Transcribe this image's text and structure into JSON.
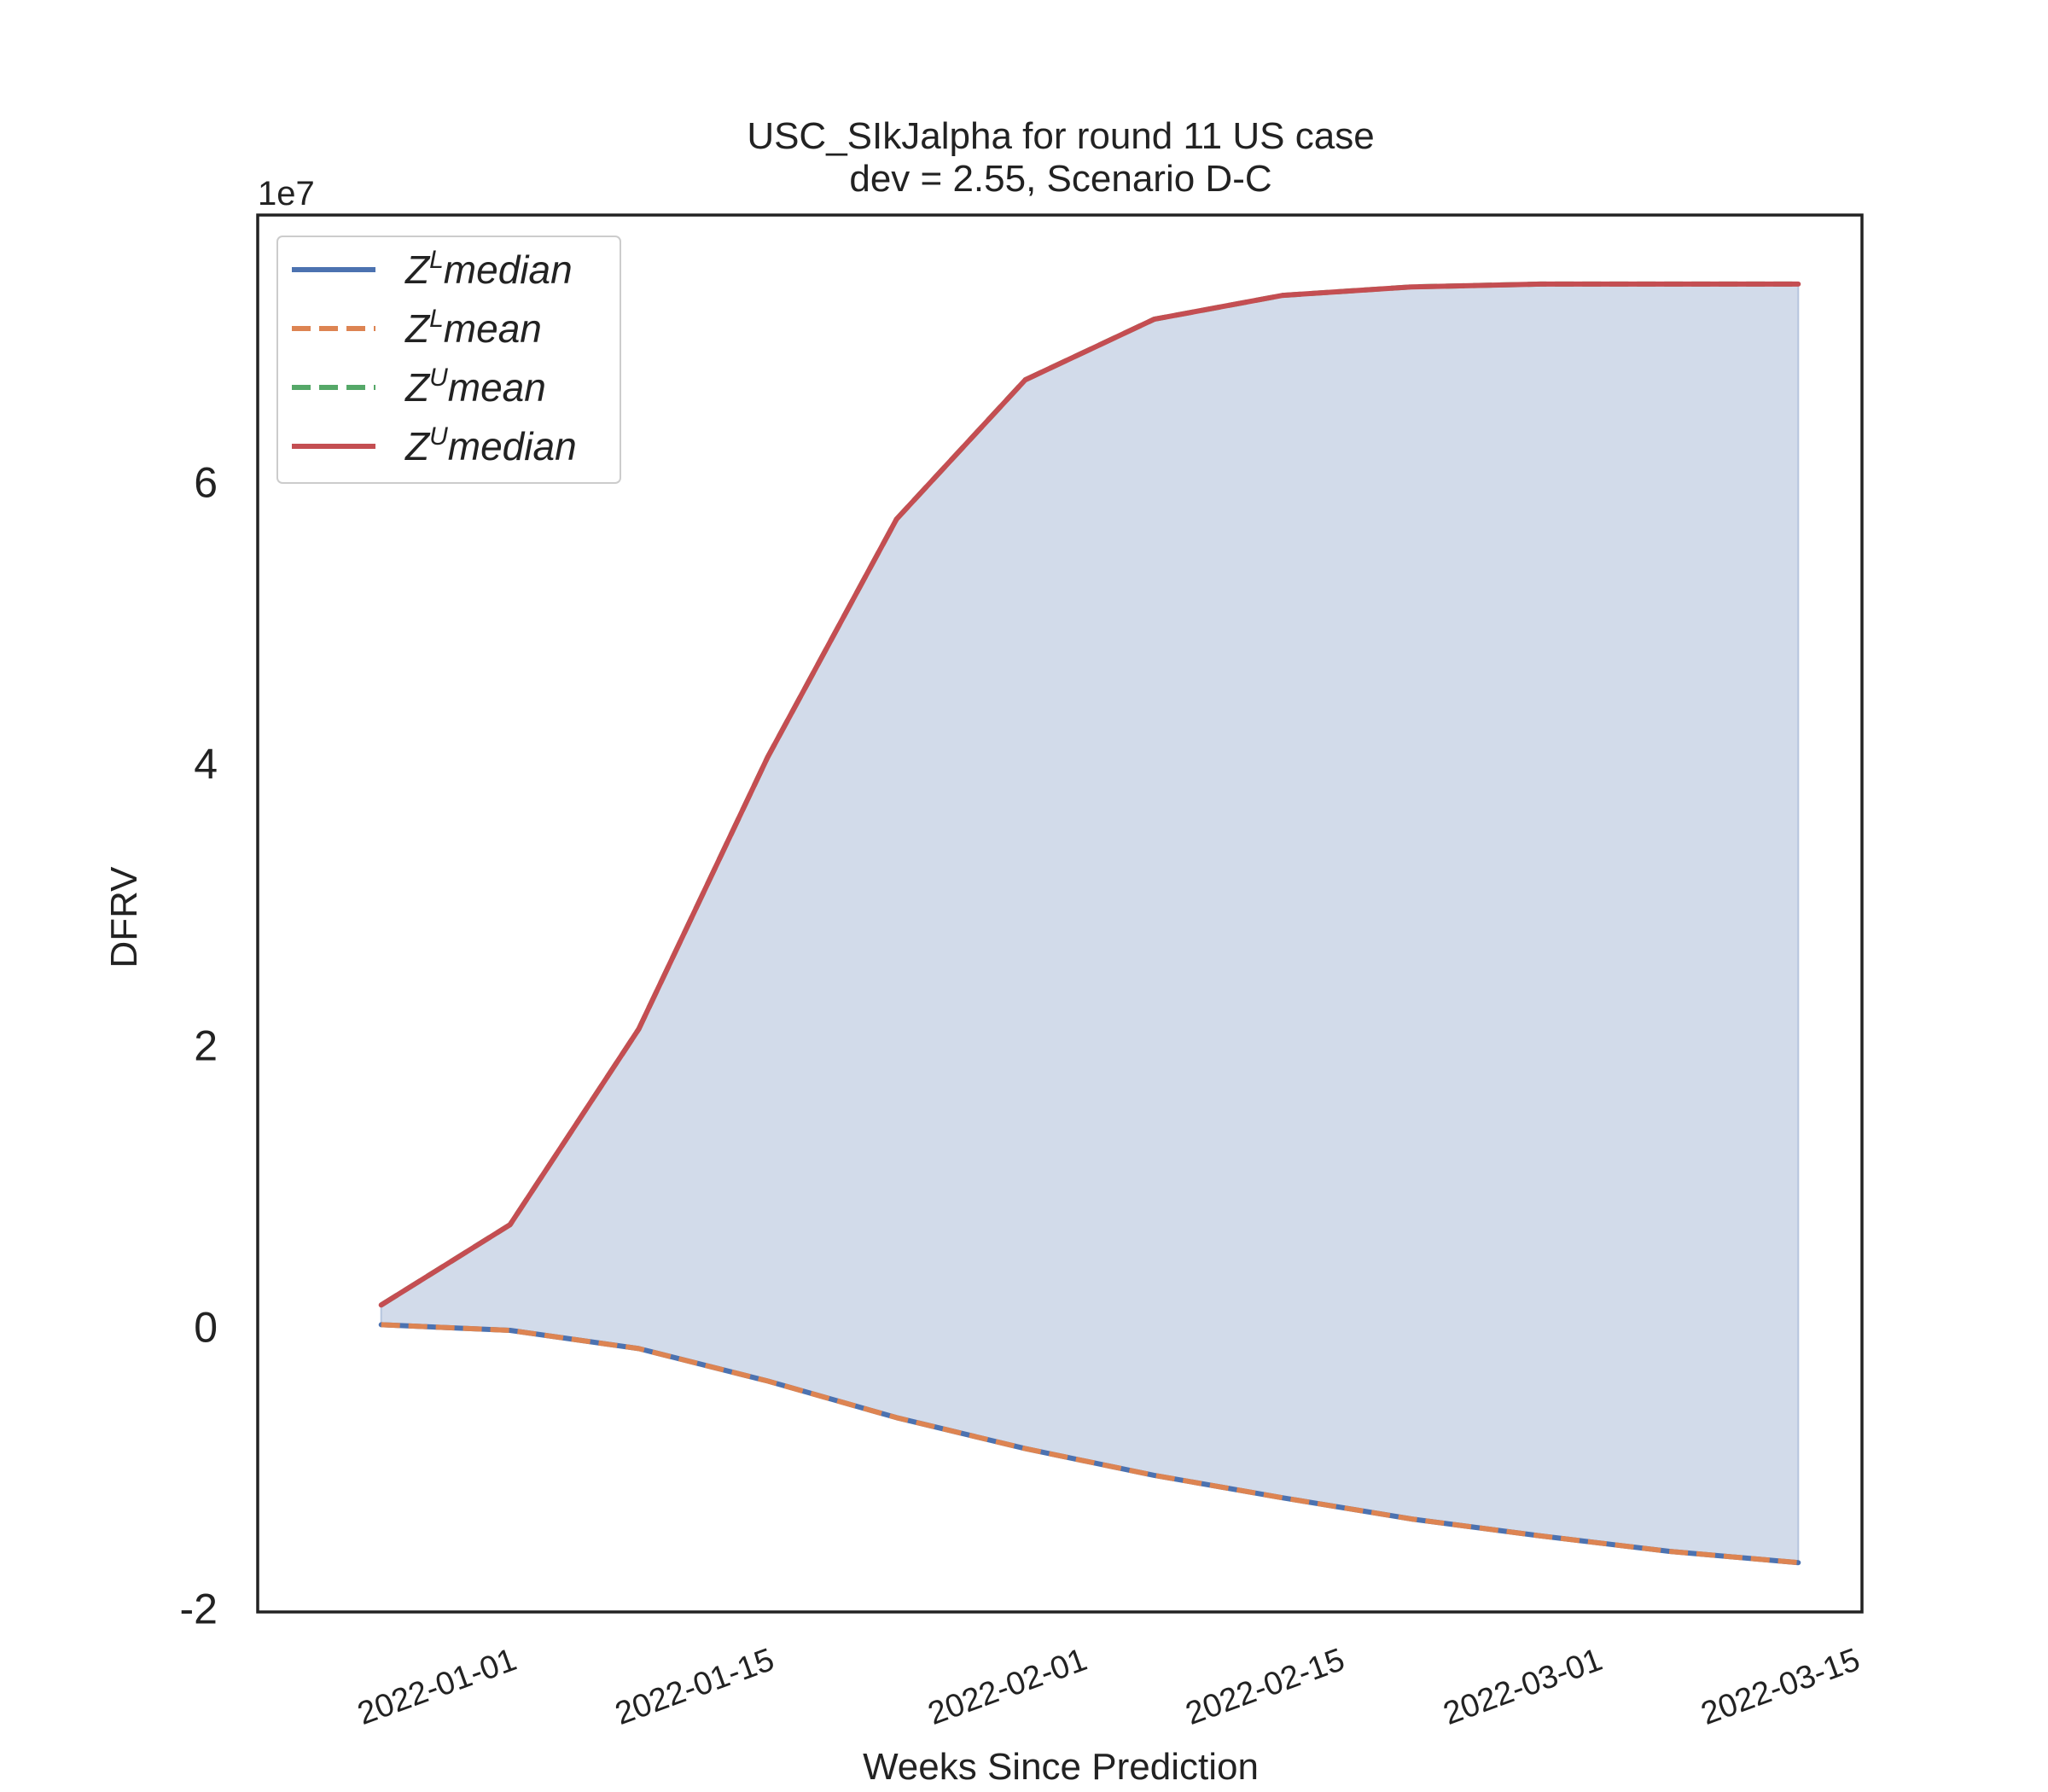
{
  "chart_data": {
    "type": "line",
    "title_line1": "USC_SIkJalpha for round 11 US case",
    "title_line2": "dev = 2.55, Scenario D-C",
    "xlabel": "Weeks Since Prediction",
    "ylabel": "DFRV",
    "y_offset_label": "1e7",
    "y_scale": 10000000,
    "ylim": [
      -2.02,
      7.9
    ],
    "xlim": [
      "2021-12-22",
      "2022-03-15"
    ],
    "y_ticks": [
      {
        "value": -2,
        "label": "-2"
      },
      {
        "value": 0,
        "label": "0"
      },
      {
        "value": 2,
        "label": "2"
      },
      {
        "value": 4,
        "label": "4"
      },
      {
        "value": 6,
        "label": "6"
      }
    ],
    "x_ticks": [
      {
        "date": "2022-01-01",
        "label": "2022-01-01"
      },
      {
        "date": "2022-01-15",
        "label": "2022-01-15"
      },
      {
        "date": "2022-02-01",
        "label": "2022-02-01"
      },
      {
        "date": "2022-02-15",
        "label": "2022-02-15"
      },
      {
        "date": "2022-03-01",
        "label": "2022-03-01"
      },
      {
        "date": "2022-03-15",
        "label": "2022-03-15"
      }
    ],
    "x": [
      "2021-12-25",
      "2022-01-01",
      "2022-01-08",
      "2022-01-15",
      "2022-01-22",
      "2022-01-29",
      "2022-02-05",
      "2022-02-12",
      "2022-02-19",
      "2022-02-26",
      "2022-03-05",
      "2022-03-12"
    ],
    "series": [
      {
        "name": "Z^L median",
        "label_base": "Z",
        "label_sup": "L",
        "label_rest": "median",
        "color": "#4c72b0",
        "dash": "solid",
        "values": [
          0.02,
          -0.02,
          -0.15,
          -0.38,
          -0.64,
          -0.86,
          -1.05,
          -1.21,
          -1.36,
          -1.48,
          -1.59,
          -1.67
        ]
      },
      {
        "name": "Z^L mean",
        "label_base": "Z",
        "label_sup": "L",
        "label_rest": "mean",
        "color": "#dd8452",
        "dash": "dashed",
        "values": [
          0.02,
          -0.02,
          -0.15,
          -0.38,
          -0.64,
          -0.86,
          -1.05,
          -1.21,
          -1.36,
          -1.48,
          -1.59,
          -1.67
        ]
      },
      {
        "name": "Z^U mean",
        "label_base": "Z",
        "label_sup": "U",
        "label_rest": "mean",
        "color": "#55a868",
        "dash": "dashed",
        "values": [
          0.16,
          0.73,
          2.12,
          4.05,
          5.74,
          6.73,
          7.16,
          7.33,
          7.39,
          7.41,
          7.41,
          7.41
        ]
      },
      {
        "name": "Z^U median",
        "label_base": "Z",
        "label_sup": "U",
        "label_rest": "median",
        "color": "#c44e52",
        "dash": "solid",
        "values": [
          0.16,
          0.73,
          2.12,
          4.05,
          5.74,
          6.73,
          7.16,
          7.33,
          7.39,
          7.41,
          7.41,
          7.41
        ]
      }
    ],
    "fill_between": {
      "lower": "Z^L median",
      "upper": "Z^U median",
      "color": "#d2dbea"
    },
    "legend_position": "upper-left",
    "grid": false
  }
}
